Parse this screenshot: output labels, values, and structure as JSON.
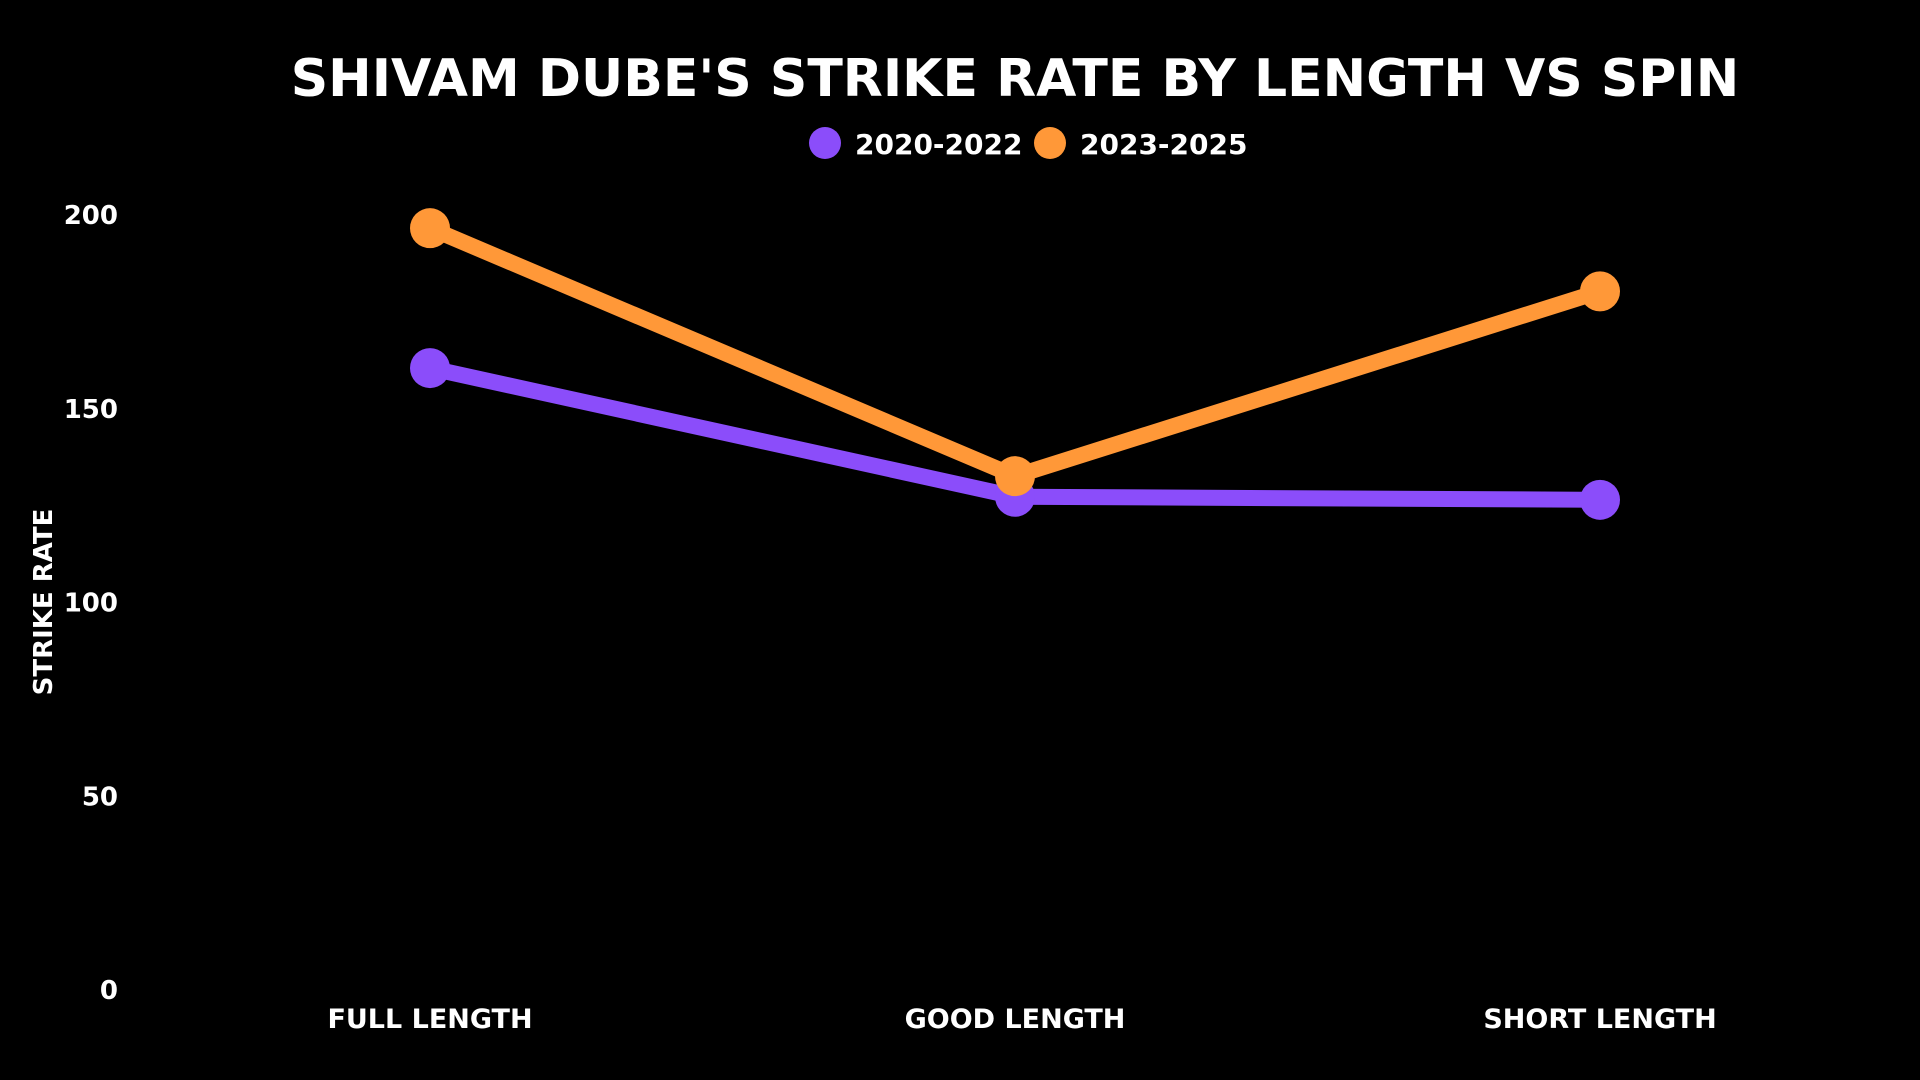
{
  "chart_data": {
    "type": "line",
    "title": "SHIVAM DUBE'S STRIKE RATE BY LENGTH VS SPIN",
    "xlabel": "",
    "ylabel": "STRIKE RATE",
    "categories": [
      "FULL LENGTH",
      "GOOD LENGTH",
      "SHORT LENGTH"
    ],
    "ylim": [
      0,
      200
    ],
    "yticks": [
      "0",
      "50",
      "100",
      "150",
      "200"
    ],
    "grid": false,
    "legend_position": "top-center",
    "series": [
      {
        "name": "2020-2022",
        "color": "#8b4dfa",
        "values": [
          160.5,
          127.3,
          126.5
        ]
      },
      {
        "name": "2023-2025",
        "color": "#ff9838",
        "values": [
          196.6,
          132.6,
          180.3
        ]
      }
    ]
  }
}
